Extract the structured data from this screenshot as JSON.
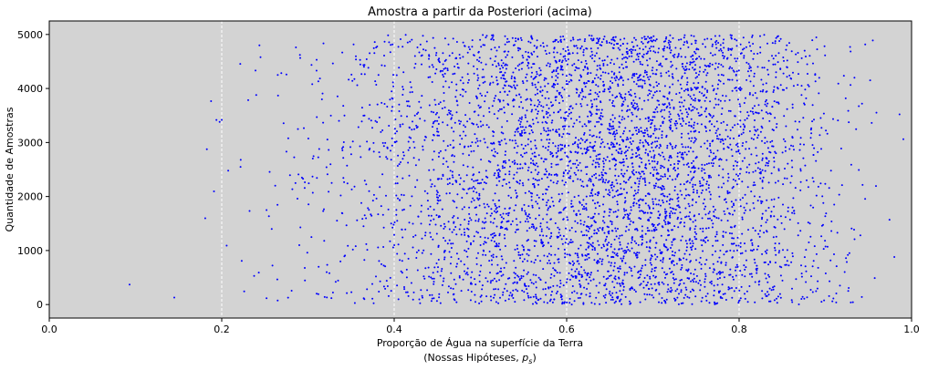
{
  "chart_data": {
    "type": "scatter",
    "title": "Amostra a partir da Posteriori (acima)",
    "xlabel": "Proporção de Água na superfície da Terra",
    "xlabel_line2_prefix": "(Nossas Hipóteses, ",
    "xlabel_line2_symbol": "p",
    "xlabel_line2_sub": "s",
    "xlabel_line2_suffix": ")",
    "ylabel": "Quantidade de Amostras",
    "xlim": [
      0.0,
      1.0
    ],
    "ylim": [
      -250,
      5250
    ],
    "xticks": [
      0.0,
      0.2,
      0.4,
      0.6,
      0.8,
      1.0
    ],
    "xtick_labels": [
      "0.0",
      "0.2",
      "0.4",
      "0.6",
      "0.8",
      "1.0"
    ],
    "yticks": [
      0,
      1000,
      2000,
      3000,
      4000,
      5000
    ],
    "ytick_labels": [
      "0",
      "1000",
      "2000",
      "3000",
      "4000",
      "5000"
    ],
    "grid": "vertical-dashed",
    "background": "#d3d3d3",
    "marker_color": "#0000ff",
    "n_samples": 5000,
    "sample_distribution": "beta(7,4)",
    "sample_index_range": [
      0,
      5000
    ],
    "notable_points": [
      {
        "x": 0.145,
        "y": 130
      },
      {
        "x": 0.2,
        "y": 3420
      },
      {
        "x": 0.24,
        "y": 3880
      },
      {
        "x": 0.245,
        "y": 4580
      },
      {
        "x": 0.252,
        "y": 1750
      },
      {
        "x": 0.258,
        "y": 1400
      },
      {
        "x": 0.262,
        "y": 2200
      },
      {
        "x": 0.265,
        "y": 4250
      },
      {
        "x": 0.275,
        "y": 4260
      },
      {
        "x": 0.286,
        "y": 4760
      },
      {
        "x": 0.29,
        "y": 1100
      },
      {
        "x": 0.304,
        "y": 1250
      },
      {
        "x": 0.31,
        "y": 4330
      },
      {
        "x": 0.986,
        "y": 3520
      },
      {
        "x": 0.98,
        "y": 880
      }
    ]
  }
}
